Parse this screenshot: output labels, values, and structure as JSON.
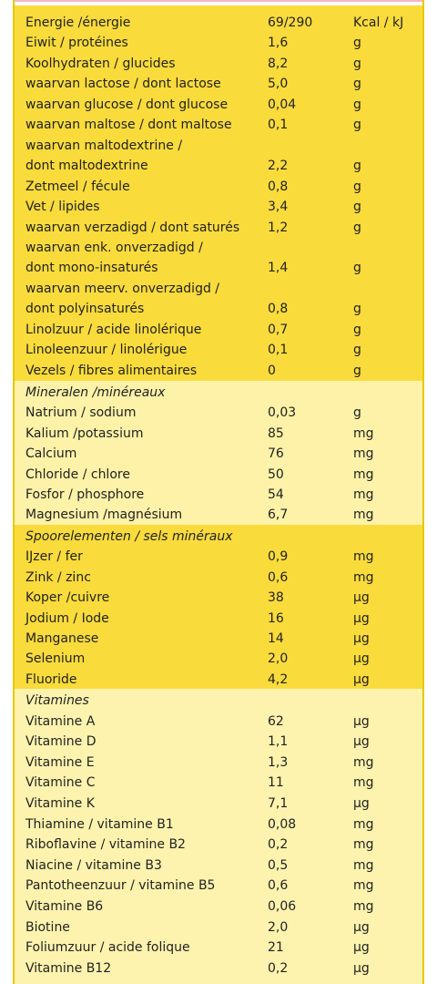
{
  "sections": [
    {
      "rows": [
        {
          "name": "Energie /énergie",
          "value": "69/290",
          "unit": "Kcal / kJ"
        },
        {
          "name": "Eiwit / protéines",
          "value": "1,6",
          "unit": "g"
        },
        {
          "name": "Koolhydraten / glucides",
          "value": "8,2",
          "unit": "g"
        },
        {
          "name": "waarvan lactose / dont lactose",
          "value": "5,0",
          "unit": "g"
        },
        {
          "name": "waarvan glucose / dont glucose",
          "value": "0,04",
          "unit": "g"
        },
        {
          "name": "waarvan maltose / dont maltose",
          "value": "0,1",
          "unit": "g"
        },
        {
          "name": "waarvan maltodextrine /",
          "value": "",
          "unit": ""
        },
        {
          "name": "dont maltodextrine",
          "value": "2,2",
          "unit": "g"
        },
        {
          "name": "Zetmeel / fécule",
          "value": "0,8",
          "unit": "g"
        },
        {
          "name": "Vet / lipides",
          "value": "3,4",
          "unit": "g"
        },
        {
          "name": "waarvan verzadigd / dont saturés",
          "value": "1,2",
          "unit": "g"
        },
        {
          "name": "waarvan enk. onverzadigd /",
          "value": "",
          "unit": ""
        },
        {
          "name": "dont mono-insaturés",
          "value": "1,4",
          "unit": "g"
        },
        {
          "name": "waarvan meerv. onverzadigd /",
          "value": "",
          "unit": ""
        },
        {
          "name": "dont polyinsaturés",
          "value": "0,8",
          "unit": "g"
        },
        {
          "name": "Linolzuur / acide linolérique",
          "value": "0,7",
          "unit": "g"
        },
        {
          "name": "Linoleenzuur / linolérigue",
          "value": "0,1",
          "unit": "g"
        },
        {
          "name": "Vezels / fibres alimentaires",
          "value": "0",
          "unit": "g"
        }
      ]
    },
    {
      "heading": "Mineralen /minéreaux",
      "rows": [
        {
          "name": "Natrium / sodium",
          "value": "0,03",
          "unit": "g"
        },
        {
          "name": "Kalium /potassium",
          "value": "85",
          "unit": "mg"
        },
        {
          "name": "Calcium",
          "value": "76",
          "unit": "mg"
        },
        {
          "name": "Chloride / chlore",
          "value": "50",
          "unit": "mg"
        },
        {
          "name": "Fosfor / phosphore",
          "value": "54",
          "unit": "mg"
        },
        {
          "name": "Magnesium /magnésium",
          "value": "6,7",
          "unit": "mg"
        }
      ]
    },
    {
      "heading": "Spoorelementen / sels minéraux",
      "rows": [
        {
          "name": "IJzer / fer",
          "value": "0,9",
          "unit": "mg"
        },
        {
          "name": "Zink / zinc",
          "value": "0,6",
          "unit": "mg"
        },
        {
          "name": "Koper /cuivre",
          "value": "38",
          "unit": "µg"
        },
        {
          "name": "Jodium / Iode",
          "value": "16",
          "unit": "µg"
        },
        {
          "name": "Manganese",
          "value": "14",
          "unit": "µg"
        },
        {
          "name": "Selenium",
          "value": "2,0",
          "unit": "µg"
        },
        {
          "name": "Fluoride",
          "value": "4,2",
          "unit": "µg"
        }
      ]
    },
    {
      "heading": "Vitamines",
      "rows": [
        {
          "name": "Vitamine A",
          "value": "62",
          "unit": "µg"
        },
        {
          "name": "Vitamine D",
          "value": "1,1",
          "unit": "µg"
        },
        {
          "name": "Vitamine E",
          "value": "1,3",
          "unit": "mg"
        },
        {
          "name": "Vitamine C",
          "value": "11",
          "unit": "mg"
        },
        {
          "name": "Vitamine K",
          "value": "7,1",
          "unit": "µg"
        },
        {
          "name": "Thiamine / vitamine B1",
          "value": "0,08",
          "unit": "mg"
        },
        {
          "name": "Riboflavine / vitamine B2",
          "value": "0,2",
          "unit": "mg"
        },
        {
          "name": "Niacine / vitamine B3",
          "value": "0,5",
          "unit": "mg"
        },
        {
          "name": "Pantotheenzuur / vitamine B5",
          "value": "0,6",
          "unit": "mg"
        },
        {
          "name": "Vitamine B6",
          "value": "0,06",
          "unit": "mg"
        },
        {
          "name": "Biotine",
          "value": "2,0",
          "unit": "µg"
        },
        {
          "name": "Foliumzuur / acide folique",
          "value": "21",
          "unit": "µg"
        },
        {
          "name": "Vitamine B12",
          "value": "0,2",
          "unit": "µg"
        }
      ]
    }
  ]
}
